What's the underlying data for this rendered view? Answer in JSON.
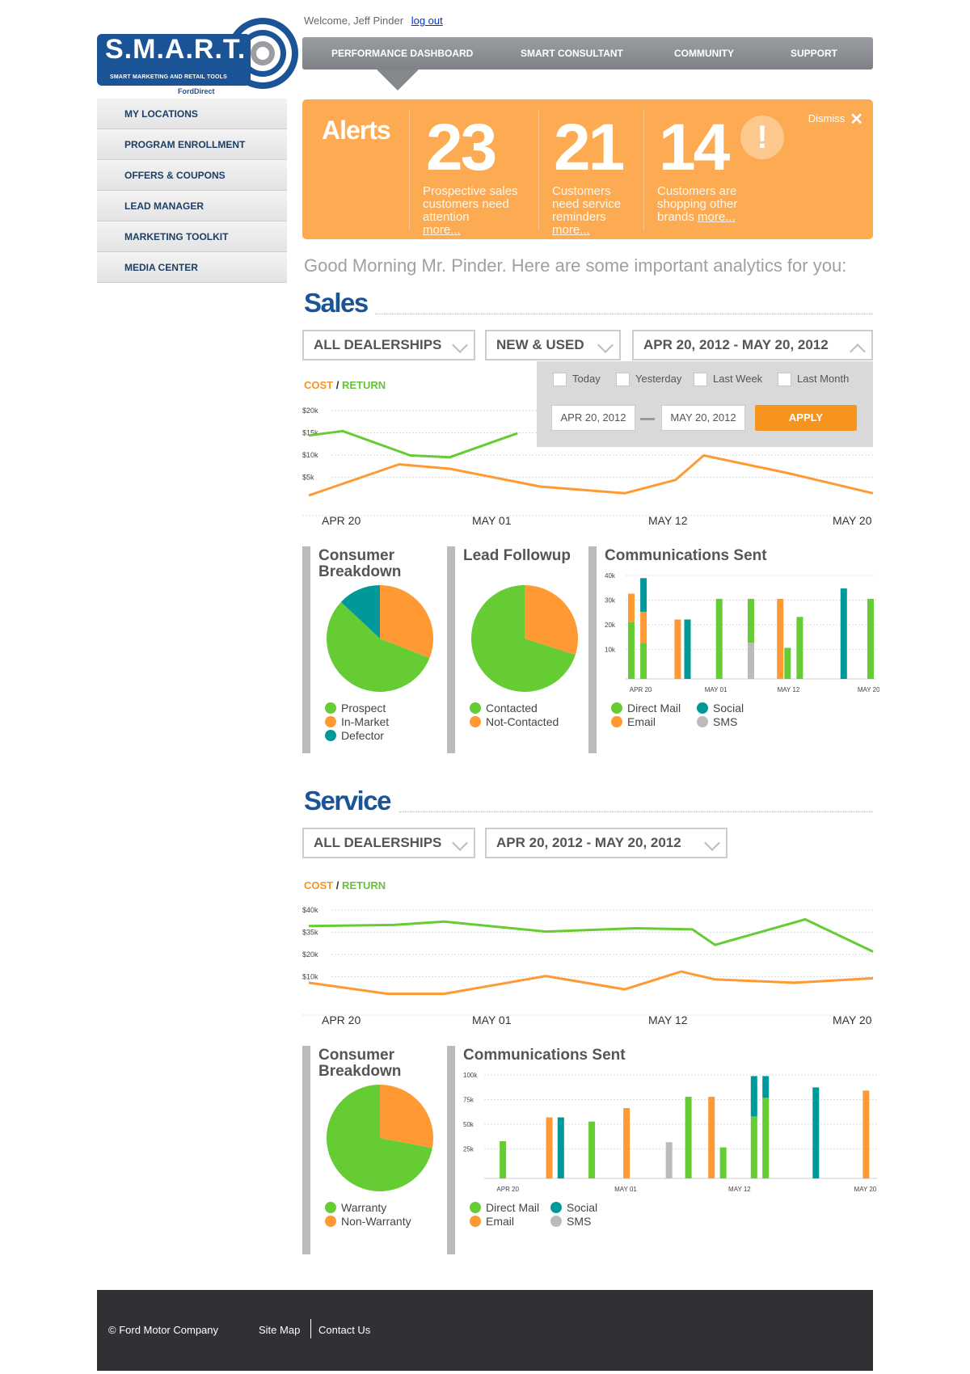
{
  "brand": {
    "name": "S.M.A.R.T.",
    "tagline": "SMART MARKETING AND RETAIL TOOLS",
    "powered_by": "FordDirect"
  },
  "user": {
    "welcome": "Welcome, Jeff Pinder",
    "logout": "log out"
  },
  "nav": {
    "items": [
      "PERFORMANCE DASHBOARD",
      "SMART CONSULTANT",
      "COMMUNITY",
      "SUPPORT"
    ],
    "active": "PERFORMANCE DASHBOARD"
  },
  "sidebar": {
    "items": [
      "MY LOCATIONS",
      "PROGRAM ENROLLMENT",
      "OFFERS & COUPONS",
      "LEAD MANAGER",
      "MARKETING TOOLKIT",
      "MEDIA CENTER"
    ]
  },
  "alerts": {
    "title": "Alerts",
    "dismiss": "Dismiss",
    "items": [
      {
        "count": "23",
        "text": "Prospective sales customers need attention",
        "more": "more..."
      },
      {
        "count": "21",
        "text": "Customers need service reminders",
        "more": "more..."
      },
      {
        "count": "14",
        "text": "Customers are shopping other brands",
        "more": "more...",
        "icon": "exclamation-icon"
      }
    ]
  },
  "greeting": "Good Morning Mr. Pinder. Here are some important analytics for you:",
  "sales": {
    "title": "Sales",
    "filters": {
      "dealership": "ALL DEALERSHIPS",
      "vehicle": "NEW & USED",
      "date_range": "APR 20, 2012 - MAY 20, 2012"
    },
    "cost_label": "COST",
    "return_label": "RETURN",
    "date_popup": {
      "options": [
        "Today",
        "Yesterday",
        "Last Week",
        "Last Month"
      ],
      "from": "APR 20, 2012",
      "to": "MAY 20, 2012",
      "apply": "APPLY"
    },
    "consumer_breakdown": {
      "title": "Consumer Breakdown",
      "legend": [
        "Prospect",
        "In-Market",
        "Defector"
      ]
    },
    "lead_followup": {
      "title": "Lead Followup",
      "legend": [
        "Contacted",
        "Not-Contacted"
      ]
    },
    "communications": {
      "title": "Communications Sent",
      "legend": [
        "Direct Mail",
        "Social",
        "Email",
        "SMS"
      ]
    }
  },
  "service": {
    "title": "Service",
    "filters": {
      "dealership": "ALL DEALERSHIPS",
      "date_range": "APR 20, 2012 - MAY 20, 2012"
    },
    "cost_label": "COST",
    "return_label": "RETURN",
    "consumer_breakdown": {
      "title": "Consumer Breakdown",
      "legend": [
        "Warranty",
        "Non-Warranty"
      ]
    },
    "communications": {
      "title": "Communications Sent",
      "legend": [
        "Direct Mail",
        "Social",
        "Email",
        "SMS"
      ]
    }
  },
  "colors": {
    "green": "#66cc33",
    "orange": "#ff9933",
    "teal": "#00999a",
    "gray": "#bbbbbb",
    "brand_blue": "#1a5396",
    "alert_orange": "#fcab52"
  },
  "chart_data": [
    {
      "id": "sales-cost-return",
      "type": "line",
      "x_ticks": [
        "APR 20",
        "MAY 01",
        "MAY 12",
        "MAY 20"
      ],
      "y_ticks": [
        "$20k",
        "$15k",
        "$10k",
        "$5k"
      ],
      "ylim": [
        0,
        20000
      ],
      "series": [
        {
          "name": "RETURN",
          "color": "#66cc33",
          "x": [
            0,
            0.06,
            0.18,
            0.25,
            0.37
          ],
          "y": [
            15500,
            16500,
            11000,
            10600,
            16000
          ]
        },
        {
          "name": "COST",
          "color": "#ff9933",
          "x": [
            0,
            0.16,
            0.25,
            0.41,
            0.56,
            0.65,
            0.7,
            0.85,
            1
          ],
          "y": [
            2000,
            9000,
            8000,
            4000,
            2500,
            5500,
            11000,
            7000,
            2500
          ]
        }
      ]
    },
    {
      "id": "sales-consumer-breakdown",
      "type": "pie",
      "labels": [
        "Prospect",
        "In-Market",
        "Defector"
      ],
      "values": [
        56,
        31,
        13
      ],
      "colors": [
        "#66cc33",
        "#ff9933",
        "#00999a"
      ]
    },
    {
      "id": "sales-lead-followup",
      "type": "pie",
      "labels": [
        "Contacted",
        "Not-Contacted"
      ],
      "values": [
        70,
        30
      ],
      "colors": [
        "#66cc33",
        "#ff9933"
      ]
    },
    {
      "id": "sales-communications",
      "type": "bar",
      "x_ticks": [
        "APR 20",
        "MAY 01",
        "MAY 12",
        "MAY 20"
      ],
      "y_ticks": [
        "40k",
        "30k",
        "20k",
        "10k"
      ],
      "ylim": [
        0,
        40000
      ],
      "series_colors": {
        "Direct Mail": "#66cc33",
        "Email": "#ff9933",
        "Social": "#00999a",
        "SMS": "#bbbbbb"
      },
      "bars": [
        {
          "x": 0.01,
          "stack": [
            [
              "Direct Mail",
              22000
            ],
            [
              "Email",
              11000
            ]
          ]
        },
        {
          "x": 0.06,
          "stack": [
            [
              "Direct Mail",
              14000
            ],
            [
              "Email",
              12000
            ],
            [
              "Social",
              13000
            ]
          ]
        },
        {
          "x": 0.2,
          "stack": [
            [
              "Email",
              23000
            ]
          ]
        },
        {
          "x": 0.24,
          "stack": [
            [
              "Social",
              23000
            ]
          ]
        },
        {
          "x": 0.37,
          "stack": [
            [
              "Direct Mail",
              31000
            ]
          ]
        },
        {
          "x": 0.5,
          "stack": [
            [
              "SMS",
              14000
            ],
            [
              "Direct Mail",
              17000
            ]
          ]
        },
        {
          "x": 0.62,
          "stack": [
            [
              "Email",
              31000
            ]
          ]
        },
        {
          "x": 0.65,
          "stack": [
            [
              "Direct Mail",
              12000
            ]
          ]
        },
        {
          "x": 0.7,
          "stack": [
            [
              "Direct Mail",
              24000
            ]
          ]
        },
        {
          "x": 0.88,
          "stack": [
            [
              "Social",
              35000
            ]
          ]
        },
        {
          "x": 0.99,
          "stack": [
            [
              "Direct Mail",
              31000
            ]
          ]
        }
      ]
    },
    {
      "id": "service-cost-return",
      "type": "line",
      "x_ticks": [
        "APR 20",
        "MAY 01",
        "MAY 12",
        "MAY 20"
      ],
      "y_ticks": [
        "$40k",
        "$35k",
        "$20k",
        "$10k"
      ],
      "ylim": [
        0,
        40000
      ],
      "series": [
        {
          "name": "RETURN",
          "color": "#66cc33",
          "x": [
            0,
            0.15,
            0.24,
            0.42,
            0.58,
            0.68,
            0.72,
            0.88,
            1
          ],
          "y": [
            35000,
            35500,
            37000,
            32500,
            34000,
            33500,
            26500,
            38000,
            23500
          ]
        },
        {
          "name": "COST",
          "color": "#ff9933",
          "x": [
            0,
            0.14,
            0.24,
            0.42,
            0.56,
            0.66,
            0.72,
            0.86,
            1
          ],
          "y": [
            9500,
            4500,
            4500,
            12500,
            6500,
            14500,
            11000,
            9500,
            11500
          ]
        }
      ]
    },
    {
      "id": "service-consumer-breakdown",
      "type": "pie",
      "labels": [
        "Warranty",
        "Non-Warranty"
      ],
      "values": [
        72,
        28
      ],
      "colors": [
        "#66cc33",
        "#ff9933"
      ]
    },
    {
      "id": "service-communications",
      "type": "bar",
      "x_ticks": [
        "APR 20",
        "MAY 01",
        "MAY 12",
        "MAY 20"
      ],
      "y_ticks": [
        "100k",
        "75k",
        "50k",
        "25k"
      ],
      "ylim": [
        0,
        100000
      ],
      "series_colors": {
        "Direct Mail": "#66cc33",
        "Email": "#ff9933",
        "Social": "#00999a",
        "SMS": "#bbbbbb"
      },
      "bars": [
        {
          "x": 0.04,
          "stack": [
            [
              "Direct Mail",
              36000
            ]
          ]
        },
        {
          "x": 0.16,
          "stack": [
            [
              "Email",
              59000
            ]
          ]
        },
        {
          "x": 0.19,
          "stack": [
            [
              "Social",
              59000
            ]
          ]
        },
        {
          "x": 0.27,
          "stack": [
            [
              "Direct Mail",
              55000
            ]
          ]
        },
        {
          "x": 0.36,
          "stack": [
            [
              "Email",
              68000
            ]
          ]
        },
        {
          "x": 0.47,
          "stack": [
            [
              "SMS",
              35000
            ]
          ]
        },
        {
          "x": 0.52,
          "stack": [
            [
              "Direct Mail",
              79000
            ]
          ]
        },
        {
          "x": 0.58,
          "stack": [
            [
              "Email",
              79000
            ]
          ]
        },
        {
          "x": 0.61,
          "stack": [
            [
              "Direct Mail",
              30000
            ]
          ]
        },
        {
          "x": 0.69,
          "stack": [
            [
              "Direct Mail",
              60000
            ],
            [
              "Social",
              39000
            ]
          ]
        },
        {
          "x": 0.72,
          "stack": [
            [
              "Direct Mail",
              78000
            ],
            [
              "Social",
              21000
            ]
          ]
        },
        {
          "x": 0.85,
          "stack": [
            [
              "Social",
              88000
            ]
          ]
        },
        {
          "x": 0.98,
          "stack": [
            [
              "Email",
              85000
            ]
          ]
        }
      ]
    }
  ]
}
